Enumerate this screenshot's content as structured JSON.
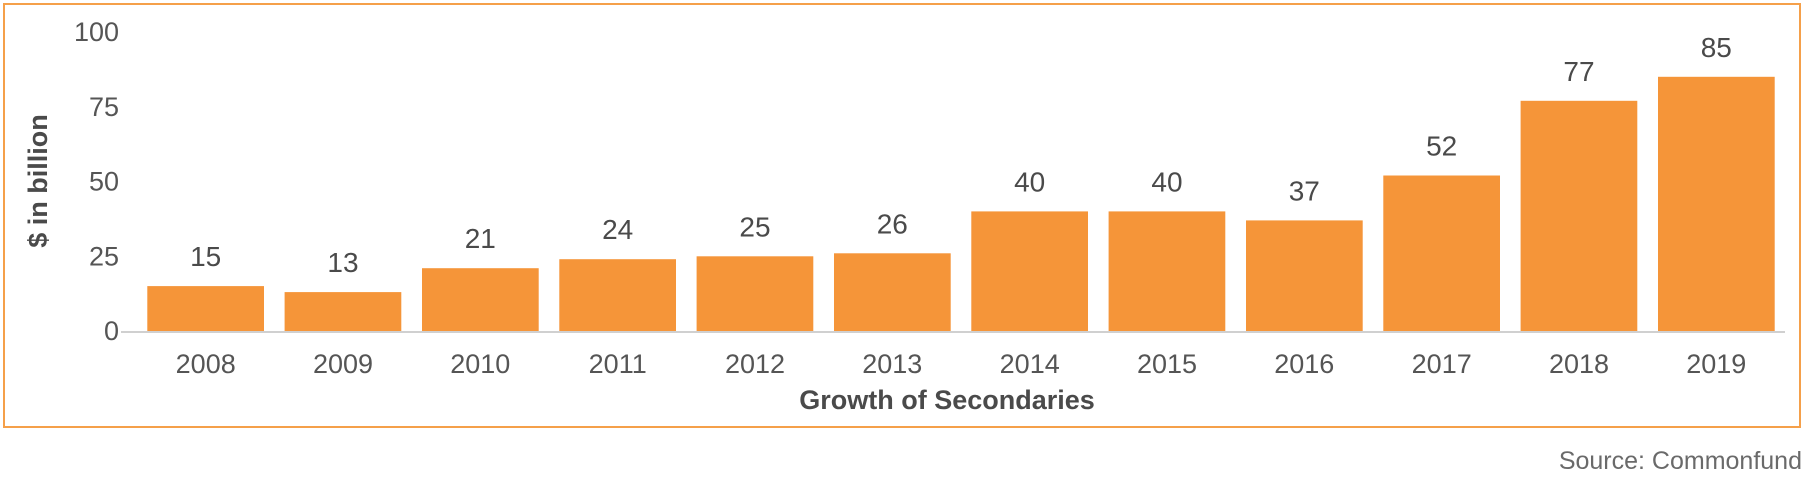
{
  "chart_data": {
    "type": "bar",
    "categories": [
      "2008",
      "2009",
      "2010",
      "2011",
      "2012",
      "2013",
      "2014",
      "2015",
      "2016",
      "2017",
      "2018",
      "2019"
    ],
    "values": [
      15,
      13,
      21,
      24,
      25,
      26,
      40,
      40,
      37,
      52,
      77,
      85
    ],
    "value_labels": [
      "15",
      "13",
      "21",
      "24",
      "25",
      "26",
      "40",
      "40",
      "37",
      "52",
      "77",
      "85"
    ],
    "title": "",
    "xlabel": "Growth of Secondaries",
    "ylabel": "$ in billion",
    "ylim": [
      0,
      100
    ],
    "yticks": [
      0,
      25,
      50,
      75,
      100
    ],
    "grid": false,
    "legend": "none",
    "bar_color": "#f59539",
    "frame_color": "#f5a04a",
    "axis_color": "#d0d0d0"
  },
  "source_note": "Source: Commonfund"
}
